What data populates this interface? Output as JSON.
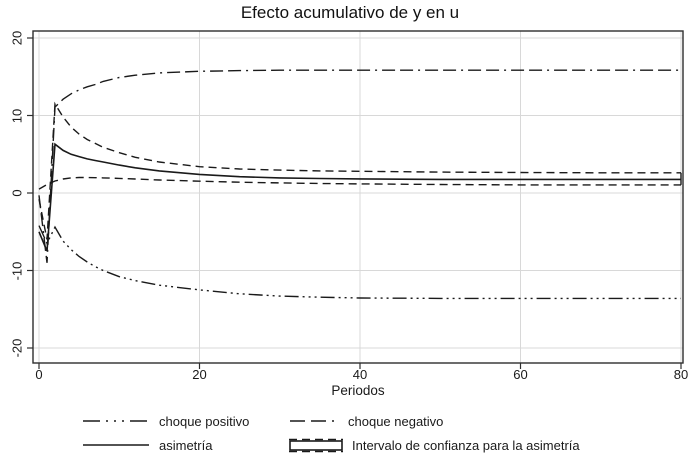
{
  "chart_data": {
    "type": "line",
    "title": "Efecto acumulativo de y en u",
    "xlabel": "Periodos",
    "ylabel": "",
    "xlim": [
      0,
      80
    ],
    "ylim": [
      -20,
      20
    ],
    "x_ticks": [
      0,
      20,
      40,
      60,
      80
    ],
    "y_ticks": [
      20,
      10,
      0,
      -10,
      -20
    ],
    "grid": true,
    "legend_position": "bottom",
    "line_color": "#1a1a1a",
    "grid_color": "#d8d8d8",
    "x": [
      0,
      1,
      2,
      3,
      4,
      5,
      6,
      7,
      8,
      10,
      12,
      15,
      20,
      25,
      30,
      35,
      40,
      50,
      60,
      70,
      80
    ],
    "series": [
      {
        "name": "choque positivo",
        "dash": "dash-dot-dot-dot",
        "values": [
          -4.2,
          -6.5,
          -4.4,
          -6.2,
          -7.3,
          -8.2,
          -8.9,
          -9.5,
          -10.0,
          -10.8,
          -11.3,
          -11.9,
          -12.5,
          -13.0,
          -13.3,
          -13.45,
          -13.55,
          -13.6,
          -13.6,
          -13.6,
          -13.6
        ]
      },
      {
        "name": "choque negativo",
        "dash": "longdash-dot",
        "values": [
          -0.3,
          -9.0,
          11.1,
          12.1,
          12.8,
          13.3,
          13.7,
          14.0,
          14.4,
          14.9,
          15.2,
          15.5,
          15.7,
          15.8,
          15.85,
          15.85,
          15.85,
          15.85,
          15.85,
          15.85,
          15.85
        ]
      },
      {
        "name": "asimetría",
        "dash": "solid",
        "values": [
          -5.0,
          -7.5,
          6.3,
          5.5,
          5.0,
          4.7,
          4.4,
          4.2,
          4.0,
          3.6,
          3.25,
          2.85,
          2.4,
          2.1,
          1.95,
          1.87,
          1.82,
          1.76,
          1.75,
          1.75,
          1.75
        ]
      },
      {
        "name": "intervalo de confianza (superior)",
        "dash": "dash",
        "values": [
          -0.8,
          -6.0,
          11.5,
          9.8,
          8.5,
          7.6,
          6.9,
          6.4,
          5.9,
          5.2,
          4.6,
          4.0,
          3.4,
          3.1,
          2.95,
          2.85,
          2.8,
          2.7,
          2.65,
          2.6,
          2.6
        ]
      },
      {
        "name": "intervalo de confianza (inferior)",
        "dash": "dash",
        "values": [
          0.5,
          1.1,
          1.55,
          1.8,
          1.95,
          2.0,
          2.0,
          1.98,
          1.95,
          1.88,
          1.8,
          1.68,
          1.52,
          1.4,
          1.3,
          1.23,
          1.18,
          1.1,
          1.05,
          1.05,
          1.05
        ]
      }
    ],
    "ci_close_segment": {
      "x": 80,
      "from": 1.05,
      "to": 2.6
    }
  },
  "legend": {
    "items": [
      {
        "label": "choque positivo"
      },
      {
        "label": "choque negativo"
      },
      {
        "label": "asimetría"
      },
      {
        "label": "Intervalo de confianza para la asimetría"
      }
    ]
  }
}
